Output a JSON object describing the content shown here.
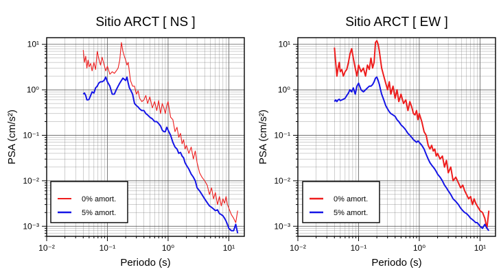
{
  "chart_data": [
    {
      "type": "line",
      "title": "Sitio ARCT [ NS ]",
      "xlabel": "Periodo (s)",
      "ylabel": "PSA (cm/s²)",
      "xscale": "log",
      "yscale": "log",
      "xlim": [
        0.01,
        18
      ],
      "ylim": [
        0.0006,
        14
      ],
      "grid": true,
      "legend_position": "bottom-left",
      "x_ticks": [
        "10⁻²",
        "10⁻¹",
        "10⁰",
        "10¹"
      ],
      "y_ticks": [
        "10⁻³",
        "10⁻²",
        "10⁻¹",
        "10⁰",
        "10¹"
      ],
      "colors": {
        "0% amort.": "#ee1c1c",
        "5% amort.": "#1414e6"
      },
      "series": [
        {
          "name": "0% amort.",
          "x": [
            0.04,
            0.042,
            0.044,
            0.046,
            0.048,
            0.05,
            0.053,
            0.056,
            0.06,
            0.064,
            0.068,
            0.072,
            0.077,
            0.082,
            0.088,
            0.094,
            0.1,
            0.11,
            0.12,
            0.13,
            0.14,
            0.15,
            0.16,
            0.17,
            0.18,
            0.19,
            0.2,
            0.21,
            0.22,
            0.23,
            0.24,
            0.26,
            0.28,
            0.3,
            0.32,
            0.34,
            0.37,
            0.4,
            0.43,
            0.46,
            0.5,
            0.55,
            0.6,
            0.65,
            0.7,
            0.75,
            0.8,
            0.85,
            0.9,
            0.95,
            1.0,
            1.1,
            1.2,
            1.3,
            1.4,
            1.5,
            1.6,
            1.7,
            1.8,
            1.9,
            2.0,
            2.2,
            2.4,
            2.6,
            2.8,
            3.0,
            3.3,
            3.6,
            4.0,
            4.4,
            4.8,
            5.2,
            5.6,
            6.0,
            6.5,
            7.0,
            7.5,
            8.0,
            8.5,
            9.0,
            9.5,
            10.0,
            11.0,
            12.0,
            13.0,
            14.0
          ],
          "values": [
            7.5,
            4.0,
            5.5,
            3.0,
            4.5,
            3.2,
            3.8,
            2.6,
            4.0,
            2.8,
            7.0,
            5.0,
            3.5,
            5.2,
            3.6,
            2.6,
            3.3,
            2.2,
            2.5,
            2.3,
            2.6,
            3.0,
            4.5,
            11.0,
            7.0,
            5.5,
            4.5,
            3.5,
            4.0,
            2.5,
            1.6,
            1.2,
            1.2,
            0.8,
            0.95,
            0.65,
            0.55,
            0.6,
            0.75,
            0.5,
            0.7,
            0.4,
            0.55,
            0.35,
            0.58,
            0.3,
            0.5,
            0.4,
            0.3,
            0.45,
            0.55,
            0.25,
            0.22,
            0.12,
            0.15,
            0.09,
            0.11,
            0.065,
            0.08,
            0.05,
            0.06,
            0.04,
            0.055,
            0.03,
            0.045,
            0.025,
            0.015,
            0.012,
            0.01,
            0.008,
            0.005,
            0.007,
            0.004,
            0.0055,
            0.003,
            0.0045,
            0.0028,
            0.004,
            0.0032,
            0.0045,
            0.003,
            0.0025,
            0.0018,
            0.0015,
            0.0012,
            0.0022
          ]
        },
        {
          "name": "5% amort.",
          "x": [
            0.04,
            0.042,
            0.044,
            0.046,
            0.048,
            0.05,
            0.053,
            0.056,
            0.06,
            0.064,
            0.068,
            0.072,
            0.077,
            0.082,
            0.088,
            0.094,
            0.1,
            0.11,
            0.12,
            0.13,
            0.14,
            0.15,
            0.16,
            0.17,
            0.18,
            0.19,
            0.2,
            0.21,
            0.22,
            0.23,
            0.24,
            0.26,
            0.28,
            0.3,
            0.32,
            0.34,
            0.37,
            0.4,
            0.43,
            0.46,
            0.5,
            0.55,
            0.6,
            0.65,
            0.7,
            0.75,
            0.8,
            0.85,
            0.9,
            0.95,
            1.0,
            1.1,
            1.2,
            1.3,
            1.4,
            1.5,
            1.6,
            1.7,
            1.8,
            1.9,
            2.0,
            2.2,
            2.4,
            2.6,
            2.8,
            3.0,
            3.3,
            3.6,
            4.0,
            4.4,
            4.8,
            5.2,
            5.6,
            6.0,
            6.5,
            7.0,
            7.5,
            8.0,
            8.5,
            9.0,
            9.5,
            10.0,
            11.0,
            12.0,
            13.0,
            14.0
          ],
          "values": [
            0.8,
            0.85,
            0.75,
            0.6,
            0.6,
            0.62,
            0.75,
            0.9,
            0.85,
            1.1,
            1.2,
            1.4,
            1.5,
            1.5,
            1.6,
            1.9,
            1.5,
            1.2,
            0.8,
            0.8,
            1.0,
            1.2,
            1.4,
            1.6,
            1.8,
            1.7,
            1.6,
            1.9,
            1.4,
            1.1,
            1.0,
            0.8,
            0.5,
            0.45,
            0.42,
            0.38,
            0.35,
            0.35,
            0.3,
            0.28,
            0.25,
            0.23,
            0.2,
            0.2,
            0.18,
            0.16,
            0.13,
            0.12,
            0.12,
            0.15,
            0.13,
            0.1,
            0.07,
            0.055,
            0.05,
            0.04,
            0.042,
            0.035,
            0.032,
            0.025,
            0.022,
            0.018,
            0.014,
            0.012,
            0.01,
            0.007,
            0.006,
            0.005,
            0.004,
            0.0033,
            0.0028,
            0.0026,
            0.0024,
            0.0022,
            0.0023,
            0.0019,
            0.0018,
            0.0017,
            0.0015,
            0.0013,
            0.0011,
            0.0009,
            0.0008,
            0.0008,
            0.0011,
            0.0007
          ]
        }
      ]
    },
    {
      "type": "line",
      "title": "Sitio ARCT [ EW ]",
      "xlabel": "Periodo (s)",
      "ylabel": "PSA (cm/s²)",
      "xscale": "log",
      "yscale": "log",
      "xlim": [
        0.01,
        18
      ],
      "ylim": [
        0.0006,
        14
      ],
      "grid": true,
      "legend_position": "bottom-left",
      "x_ticks": [
        "10⁻²",
        "10⁻¹",
        "10⁰",
        "10¹"
      ],
      "y_ticks": [
        "10⁻³",
        "10⁻²",
        "10⁻¹",
        "10⁰",
        "10¹"
      ],
      "colors": {
        "0% amort.": "#ee1c1c",
        "5% amort.": "#1414e6"
      },
      "series": [
        {
          "name": "0% amort.",
          "x": [
            0.04,
            0.042,
            0.044,
            0.046,
            0.048,
            0.05,
            0.053,
            0.056,
            0.06,
            0.064,
            0.068,
            0.072,
            0.077,
            0.082,
            0.088,
            0.094,
            0.1,
            0.11,
            0.12,
            0.13,
            0.14,
            0.15,
            0.16,
            0.17,
            0.18,
            0.19,
            0.2,
            0.21,
            0.22,
            0.23,
            0.24,
            0.26,
            0.28,
            0.3,
            0.32,
            0.34,
            0.37,
            0.4,
            0.43,
            0.46,
            0.5,
            0.55,
            0.6,
            0.65,
            0.7,
            0.75,
            0.8,
            0.85,
            0.9,
            0.95,
            1.0,
            1.1,
            1.2,
            1.3,
            1.4,
            1.5,
            1.6,
            1.7,
            1.8,
            1.9,
            2.0,
            2.2,
            2.4,
            2.6,
            2.8,
            3.0,
            3.3,
            3.6,
            4.0,
            4.4,
            4.8,
            5.2,
            5.6,
            6.0,
            6.5,
            7.0,
            7.5,
            8.0,
            8.5,
            9.0,
            9.5,
            10.0,
            11.0,
            12.0,
            13.0,
            14.0
          ],
          "values": [
            8.5,
            4.0,
            2.0,
            3.0,
            4.0,
            2.5,
            2.8,
            2.0,
            2.5,
            2.8,
            4.0,
            6.0,
            8.0,
            5.0,
            3.0,
            2.0,
            3.5,
            2.5,
            3.0,
            2.0,
            3.5,
            2.8,
            5.0,
            3.0,
            4.0,
            11.0,
            12.0,
            10.0,
            7.0,
            4.5,
            3.0,
            2.0,
            1.4,
            1.0,
            1.5,
            0.8,
            1.2,
            0.65,
            1.0,
            0.55,
            0.8,
            0.5,
            0.6,
            0.35,
            0.55,
            0.42,
            0.3,
            0.28,
            0.35,
            0.22,
            0.3,
            0.2,
            0.12,
            0.1,
            0.06,
            0.05,
            0.06,
            0.045,
            0.05,
            0.035,
            0.04,
            0.03,
            0.035,
            0.02,
            0.028,
            0.015,
            0.02,
            0.01,
            0.012,
            0.009,
            0.007,
            0.008,
            0.006,
            0.005,
            0.004,
            0.0045,
            0.003,
            0.004,
            0.0032,
            0.0028,
            0.0025,
            0.0022,
            0.002,
            0.0015,
            0.0009,
            0.0022
          ]
        },
        {
          "name": "5% amort.",
          "x": [
            0.04,
            0.042,
            0.044,
            0.046,
            0.048,
            0.05,
            0.053,
            0.056,
            0.06,
            0.064,
            0.068,
            0.072,
            0.077,
            0.082,
            0.088,
            0.094,
            0.1,
            0.11,
            0.12,
            0.13,
            0.14,
            0.15,
            0.16,
            0.17,
            0.18,
            0.19,
            0.2,
            0.21,
            0.22,
            0.23,
            0.24,
            0.26,
            0.28,
            0.3,
            0.32,
            0.34,
            0.37,
            0.4,
            0.43,
            0.46,
            0.5,
            0.55,
            0.6,
            0.65,
            0.7,
            0.75,
            0.8,
            0.85,
            0.9,
            0.95,
            1.0,
            1.1,
            1.2,
            1.3,
            1.4,
            1.5,
            1.6,
            1.7,
            1.8,
            1.9,
            2.0,
            2.2,
            2.4,
            2.6,
            2.8,
            3.0,
            3.3,
            3.6,
            4.0,
            4.4,
            4.8,
            5.2,
            5.6,
            6.0,
            6.5,
            7.0,
            7.5,
            8.0,
            8.5,
            9.0,
            9.5,
            10.0,
            11.0,
            12.0,
            13.0,
            14.0
          ],
          "values": [
            0.55,
            0.6,
            0.55,
            0.6,
            0.62,
            0.58,
            0.6,
            0.62,
            0.65,
            0.75,
            0.85,
            1.0,
            0.9,
            1.1,
            0.8,
            1.2,
            1.4,
            1.0,
            0.9,
            1.0,
            1.1,
            1.2,
            1.2,
            1.3,
            1.5,
            1.8,
            1.9,
            1.6,
            1.3,
            1.0,
            0.8,
            0.6,
            0.45,
            0.38,
            0.33,
            0.3,
            0.28,
            0.26,
            0.22,
            0.2,
            0.17,
            0.15,
            0.13,
            0.11,
            0.1,
            0.09,
            0.08,
            0.075,
            0.07,
            0.075,
            0.07,
            0.06,
            0.05,
            0.038,
            0.03,
            0.025,
            0.022,
            0.02,
            0.018,
            0.016,
            0.014,
            0.012,
            0.01,
            0.008,
            0.007,
            0.006,
            0.005,
            0.004,
            0.0035,
            0.003,
            0.0025,
            0.0022,
            0.002,
            0.0019,
            0.0017,
            0.0015,
            0.0014,
            0.0013,
            0.0012,
            0.0012,
            0.0011,
            0.001,
            0.0009,
            0.0011,
            0.0009,
            0.0008
          ]
        }
      ]
    }
  ]
}
